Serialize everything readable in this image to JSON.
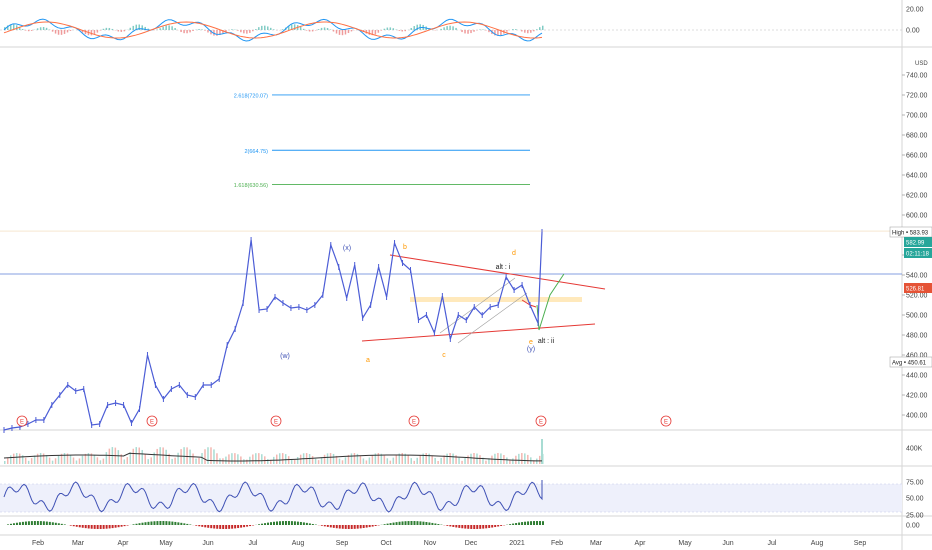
{
  "chart_data": {
    "type": "line",
    "title": "",
    "currency": "USD",
    "price_axis": {
      "ticks": [
        "740.00",
        "720.00",
        "700.00",
        "680.00",
        "660.00",
        "640.00",
        "620.00",
        "600.00",
        "580.00",
        "560.00",
        "540.00",
        "520.00",
        "500.00",
        "480.00",
        "460.00",
        "440.00",
        "420.00",
        "400.00"
      ],
      "ylim": [
        385,
        765
      ]
    },
    "price_badges": [
      {
        "label": "High",
        "value": "583.93",
        "color": "#ffffff"
      },
      {
        "label": "",
        "value": "582.99",
        "color": "#26a69a"
      },
      {
        "label": "",
        "value": "02:11:18",
        "color": "#26a69a"
      },
      {
        "label": "",
        "value": "526.81",
        "color": "#e55336"
      },
      {
        "label": "Avg",
        "value": "450.61",
        "color": "#ffffff"
      }
    ],
    "months": [
      "Feb",
      "Mar",
      "Apr",
      "May",
      "Jun",
      "Jul",
      "Aug",
      "Sep",
      "Oct",
      "Nov",
      "Dec",
      "2021",
      "Feb",
      "Mar",
      "Apr",
      "May",
      "Jun",
      "Jul",
      "Aug",
      "Sep"
    ],
    "fib_levels": [
      {
        "label": "2.618(720.07)",
        "value": 720.07,
        "color": "#2196f3"
      },
      {
        "label": "2(664.75)",
        "value": 664.75,
        "color": "#2196f3"
      },
      {
        "label": "1.618(630.56)",
        "value": 630.56,
        "color": "#4caf50"
      }
    ],
    "wave_labels": [
      {
        "text": "(w)",
        "color": "#3f51b5"
      },
      {
        "text": "(x)",
        "color": "#3f51b5"
      },
      {
        "text": "b",
        "color": "#ff9800"
      },
      {
        "text": "a",
        "color": "#ff9800"
      },
      {
        "text": "c",
        "color": "#ff9800"
      },
      {
        "text": "d",
        "color": "#ff9800"
      },
      {
        "text": "e",
        "color": "#ff9800"
      },
      {
        "text": "(y)",
        "color": "#3f51b5"
      },
      {
        "text": "alt : i",
        "color": "#222222"
      },
      {
        "text": "alt : ii",
        "color": "#222222"
      }
    ],
    "earnings_marker": "E",
    "volume_axis": {
      "ticks": [
        "400K"
      ]
    },
    "rsi_axis": {
      "ticks": [
        "75.00",
        "50.00",
        "25.00"
      ]
    },
    "macd_axis": {
      "ticks": [
        "20.00",
        "0.00"
      ]
    },
    "osc_axis": {
      "ticks": [
        "0.00"
      ]
    },
    "series": [
      {
        "name": "",
        "x": [
          0,
          8,
          16,
          24,
          32,
          40,
          48,
          56,
          64,
          72,
          80,
          88,
          96,
          104,
          112,
          120,
          128,
          136,
          144,
          152,
          160,
          168,
          176,
          184,
          192,
          200,
          208,
          216,
          224,
          232,
          240,
          248,
          256,
          264,
          272,
          280,
          288,
          296,
          304,
          312,
          320,
          328,
          336,
          344,
          352,
          360,
          368,
          376,
          384,
          392,
          400,
          408,
          416,
          424,
          432,
          440,
          448,
          456,
          464,
          472,
          480,
          488,
          496,
          504,
          512,
          520,
          528,
          536,
          540
        ],
        "values": [
          385,
          387,
          388,
          391,
          395,
          395,
          410,
          420,
          430,
          424,
          426,
          390,
          391,
          410,
          412,
          410,
          392,
          406,
          460,
          430,
          416,
          426,
          430,
          420,
          418,
          430,
          430,
          436,
          470,
          486,
          512,
          575,
          505,
          506,
          518,
          512,
          507,
          508,
          505,
          510,
          520,
          570,
          548,
          517,
          550,
          497,
          510,
          548,
          518,
          572,
          552,
          545,
          495,
          500,
          482,
          519,
          476,
          500,
          495,
          508,
          500,
          508,
          510,
          538,
          525,
          530,
          510,
          492,
          583
        ]
      }
    ]
  }
}
